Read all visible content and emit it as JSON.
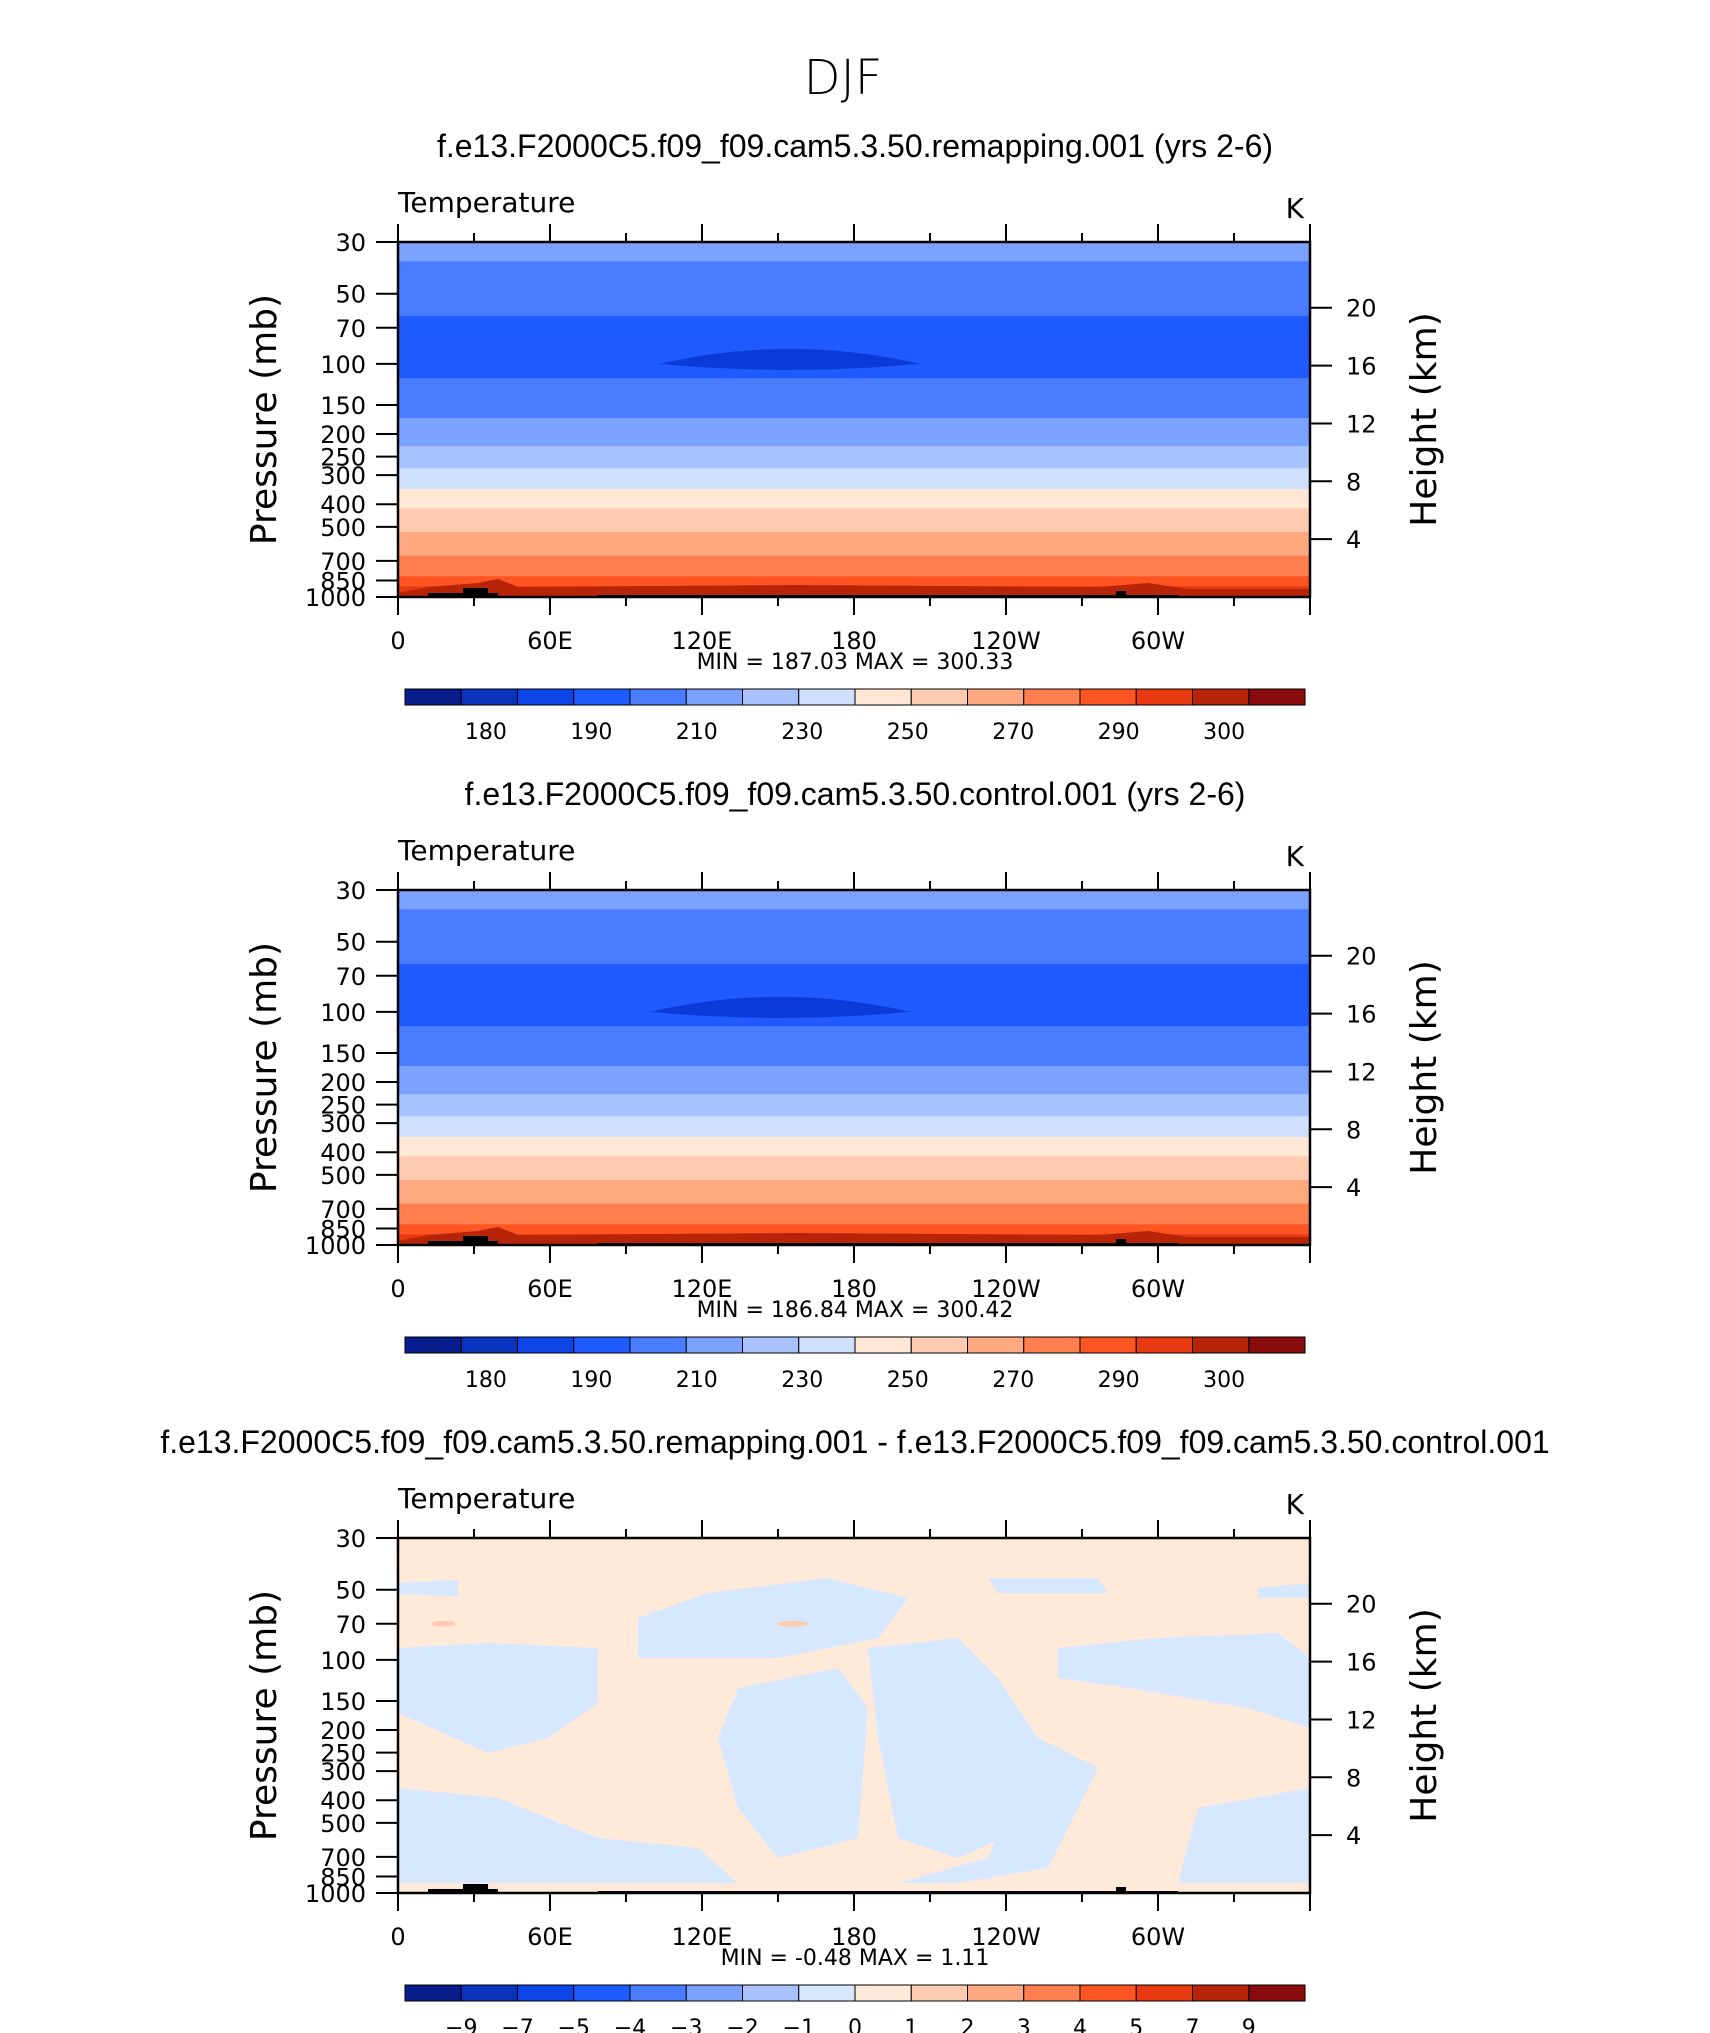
{
  "figure": {
    "season": "DJF"
  },
  "panels": [
    {
      "title": "f.e13.F2000C5.f09_f09.cam5.3.50.remapping.001 (yrs 2-6)",
      "left_label": "Temperature",
      "right_label": "K",
      "stats": {
        "min_label": "MIN =",
        "min": "187.03",
        "max_label": "MAX =",
        "max": "300.33"
      },
      "colorbar": {
        "labels": [
          "180",
          "190",
          "210",
          "230",
          "250",
          "270",
          "290",
          "300"
        ]
      }
    },
    {
      "title": "f.e13.F2000C5.f09_f09.cam5.3.50.control.001 (yrs 2-6)",
      "left_label": "Temperature",
      "right_label": "K",
      "stats": {
        "min_label": "MIN =",
        "min": "186.84",
        "max_label": "MAX =",
        "max": "300.42"
      },
      "colorbar": {
        "labels": [
          "180",
          "190",
          "210",
          "230",
          "250",
          "270",
          "290",
          "300"
        ]
      }
    },
    {
      "title": "f.e13.F2000C5.f09_f09.cam5.3.50.remapping.001 - f.e13.F2000C5.f09_f09.cam5.3.50.control.001",
      "left_label": "Temperature",
      "right_label": "K",
      "stats": {
        "min_label": "MIN =",
        "min": "-0.48",
        "max_label": "MAX =",
        "max": "1.11"
      },
      "colorbar": {
        "labels": [
          "−9",
          "−7",
          "−5",
          "−4",
          "−3",
          "−2",
          "−1",
          "0",
          "1",
          "2",
          "3",
          "4",
          "5",
          "7",
          "9"
        ]
      }
    }
  ],
  "chart_data": [
    {
      "type": "heatmap",
      "title": "f.e13.F2000C5.f09_f09.cam5.3.50.remapping.001 (yrs 2-6)",
      "variable": "Temperature",
      "units": "K",
      "xlabel": "",
      "ylabel": "Pressure (mb)",
      "y2label": "Height (km)",
      "x_ticks": [
        "0",
        "60E",
        "120E",
        "180",
        "120W",
        "60W"
      ],
      "y_ticks": [
        30,
        50,
        70,
        100,
        150,
        200,
        250,
        300,
        400,
        500,
        700,
        850,
        1000
      ],
      "y_ticks_labels": [
        "30",
        "50",
        "70",
        "100",
        "150",
        "200",
        "250",
        "300",
        "400",
        "500",
        "700",
        "850",
        "1000"
      ],
      "y2_ticks": [
        20,
        16,
        12,
        8,
        4
      ],
      "y2_ticks_labels": [
        "20",
        "16",
        "12",
        "8",
        "4"
      ],
      "ylim": [
        1000,
        30
      ],
      "y_scale": "log",
      "min": 187.03,
      "max": 300.33,
      "levels": [
        180,
        185,
        190,
        200,
        210,
        220,
        230,
        240,
        250,
        260,
        270,
        280,
        290,
        295,
        300
      ],
      "colors": [
        "#0a1d8c",
        "#0a33bd",
        "#0d45e6",
        "#1f5bff",
        "#4a7cff",
        "#7ca2ff",
        "#a7c2ff",
        "#cfe0ff",
        "#ffe6d5",
        "#ffcbb0",
        "#ffa980",
        "#ff7f4f",
        "#ff5522",
        "#e83a10",
        "#b82408",
        "#8a0b0b"
      ],
      "vertical_profile_K": [
        {
          "p": 30,
          "t": 214
        },
        {
          "p": 40,
          "t": 208
        },
        {
          "p": 70,
          "t": 198
        },
        {
          "p": 100,
          "t": 197
        },
        {
          "p": 150,
          "t": 206
        },
        {
          "p": 200,
          "t": 215
        },
        {
          "p": 250,
          "t": 224
        },
        {
          "p": 300,
          "t": 233
        },
        {
          "p": 400,
          "t": 248
        },
        {
          "p": 500,
          "t": 258
        },
        {
          "p": 700,
          "t": 272
        },
        {
          "p": 850,
          "t": 282
        },
        {
          "p": 1000,
          "t": 292
        }
      ]
    },
    {
      "type": "heatmap",
      "title": "f.e13.F2000C5.f09_f09.cam5.3.50.control.001 (yrs 2-6)",
      "variable": "Temperature",
      "units": "K",
      "xlabel": "",
      "ylabel": "Pressure (mb)",
      "y2label": "Height (km)",
      "x_ticks": [
        "0",
        "60E",
        "120E",
        "180",
        "120W",
        "60W"
      ],
      "y_ticks": [
        30,
        50,
        70,
        100,
        150,
        200,
        250,
        300,
        400,
        500,
        700,
        850,
        1000
      ],
      "y_ticks_labels": [
        "30",
        "50",
        "70",
        "100",
        "150",
        "200",
        "250",
        "300",
        "400",
        "500",
        "700",
        "850",
        "1000"
      ],
      "y2_ticks": [
        20,
        16,
        12,
        8,
        4
      ],
      "y2_ticks_labels": [
        "20",
        "16",
        "12",
        "8",
        "4"
      ],
      "ylim": [
        1000,
        30
      ],
      "y_scale": "log",
      "min": 186.84,
      "max": 300.42,
      "levels": [
        180,
        185,
        190,
        200,
        210,
        220,
        230,
        240,
        250,
        260,
        270,
        280,
        290,
        295,
        300
      ],
      "colors": [
        "#0a1d8c",
        "#0a33bd",
        "#0d45e6",
        "#1f5bff",
        "#4a7cff",
        "#7ca2ff",
        "#a7c2ff",
        "#cfe0ff",
        "#ffe6d5",
        "#ffcbb0",
        "#ffa980",
        "#ff7f4f",
        "#ff5522",
        "#e83a10",
        "#b82408",
        "#8a0b0b"
      ],
      "vertical_profile_K": [
        {
          "p": 30,
          "t": 214
        },
        {
          "p": 40,
          "t": 208
        },
        {
          "p": 70,
          "t": 198
        },
        {
          "p": 100,
          "t": 197
        },
        {
          "p": 150,
          "t": 206
        },
        {
          "p": 200,
          "t": 215
        },
        {
          "p": 250,
          "t": 224
        },
        {
          "p": 300,
          "t": 233
        },
        {
          "p": 400,
          "t": 248
        },
        {
          "p": 500,
          "t": 258
        },
        {
          "p": 700,
          "t": 272
        },
        {
          "p": 850,
          "t": 282
        },
        {
          "p": 1000,
          "t": 292
        }
      ]
    },
    {
      "type": "heatmap",
      "title": "f.e13.F2000C5.f09_f09.cam5.3.50.remapping.001 - f.e13.F2000C5.f09_f09.cam5.3.50.control.001",
      "variable": "Temperature",
      "units": "K",
      "xlabel": "",
      "ylabel": "Pressure (mb)",
      "y2label": "Height (km)",
      "x_ticks": [
        "0",
        "60E",
        "120E",
        "180",
        "120W",
        "60W"
      ],
      "y_ticks": [
        30,
        50,
        70,
        100,
        150,
        200,
        250,
        300,
        400,
        500,
        700,
        850,
        1000
      ],
      "y_ticks_labels": [
        "30",
        "50",
        "70",
        "100",
        "150",
        "200",
        "250",
        "300",
        "400",
        "500",
        "700",
        "850",
        "1000"
      ],
      "y2_ticks": [
        20,
        16,
        12,
        8,
        4
      ],
      "y2_ticks_labels": [
        "20",
        "16",
        "12",
        "8",
        "4"
      ],
      "ylim": [
        1000,
        30
      ],
      "y_scale": "log",
      "min": -0.48,
      "max": 1.11,
      "levels": [
        -9,
        -7,
        -5,
        -4,
        -3,
        -2,
        -1,
        0,
        1,
        2,
        3,
        4,
        5,
        7,
        9
      ],
      "colors": [
        "#0a1d8c",
        "#0a33bd",
        "#0d45e6",
        "#1f5bff",
        "#4a7cff",
        "#7ca2ff",
        "#a7c2ff",
        "#d6e8ff",
        "#ffe9d8",
        "#ffcbb0",
        "#ffa980",
        "#ff7f4f",
        "#ff5522",
        "#e83a10",
        "#b82408",
        "#8a0b0b"
      ],
      "field_description_K": {
        "dominant_range": [
          0,
          1
        ],
        "secondary_range": [
          -1,
          0
        ]
      }
    }
  ],
  "axis_titles": {
    "left": "Pressure (mb)",
    "right": "Height (km)"
  },
  "colors": {
    "frame": "#000000",
    "land": "#000000",
    "cold_core": "#0a3ad8",
    "diff_pos": "#ffe9d8",
    "diff_neg": "#d6e8ff",
    "diff_accent": "#ffcbb0"
  }
}
